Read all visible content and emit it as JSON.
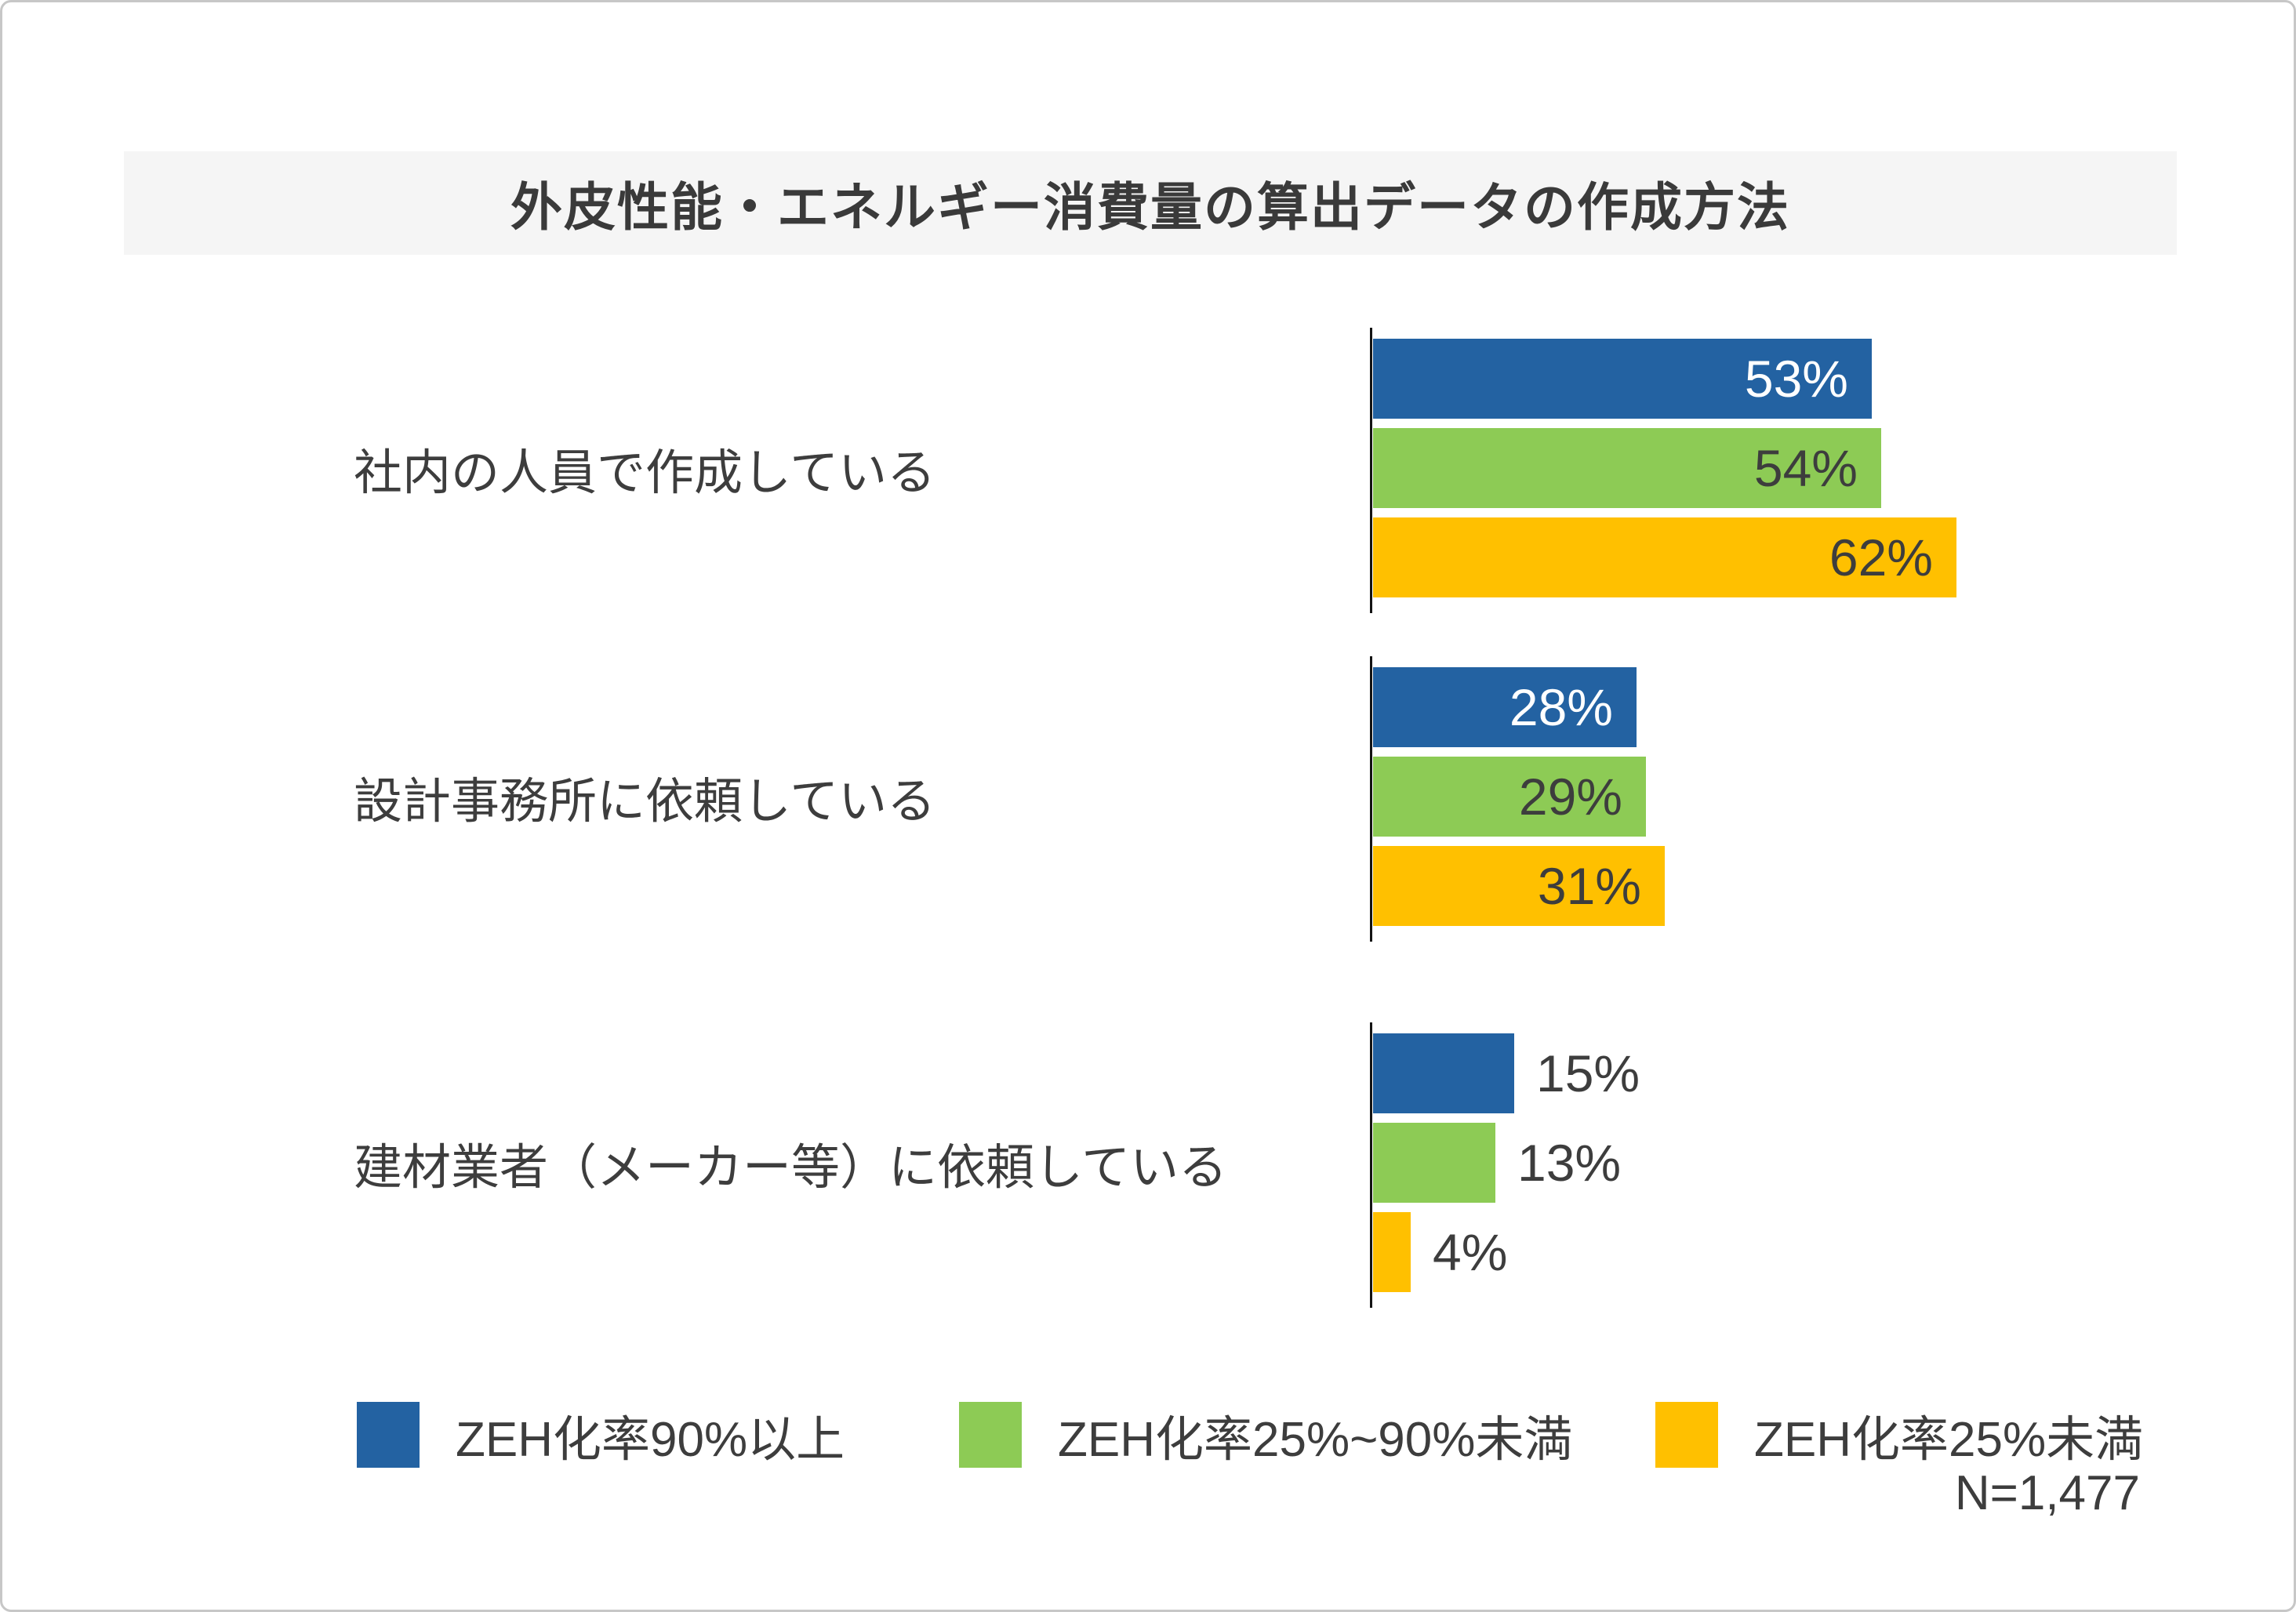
{
  "page": {
    "background": "#ffffff",
    "border_color": "#c7c7c7"
  },
  "header": {
    "title": "外皮性能・エネルギー消費量の算出データの作成方法",
    "band_color": "#f5f5f5",
    "text_color": "#3a3a3a"
  },
  "chart_data": {
    "type": "bar",
    "orientation": "horizontal",
    "unit": "%",
    "title": "外皮性能・エネルギー消費量の算出データの作成方法",
    "categories": [
      "社内の人員で作成している",
      "設計事務所に依頼している",
      "建材業者（メーカー等）に依頼している"
    ],
    "series": [
      {
        "name": "ZEH化率90%以上",
        "color": "#2362A2",
        "label_color_inside": "#ffffff",
        "values": [
          53,
          28,
          15
        ]
      },
      {
        "name": "ZEH化率25%~90%未満",
        "color": "#8DCB55",
        "label_color_inside": "#3d3d3d",
        "values": [
          54,
          29,
          13
        ]
      },
      {
        "name": "ZEH化率25%未満",
        "color": "#FFC000",
        "label_color_inside": "#3d3d3d",
        "values": [
          62,
          31,
          4
        ]
      }
    ],
    "value_labels": [
      [
        "53%",
        "28%",
        "15%"
      ],
      [
        "54%",
        "29%",
        "13%"
      ],
      [
        "62%",
        "31%",
        "4%"
      ]
    ],
    "xlim": [
      0,
      100
    ],
    "grid": false,
    "baseline_axis": true,
    "legend_position": "bottom",
    "outside_label_color": "#3d3d3d",
    "inside_label_threshold_pct": 20
  },
  "footnote": {
    "sample_size": "N=1,477"
  }
}
